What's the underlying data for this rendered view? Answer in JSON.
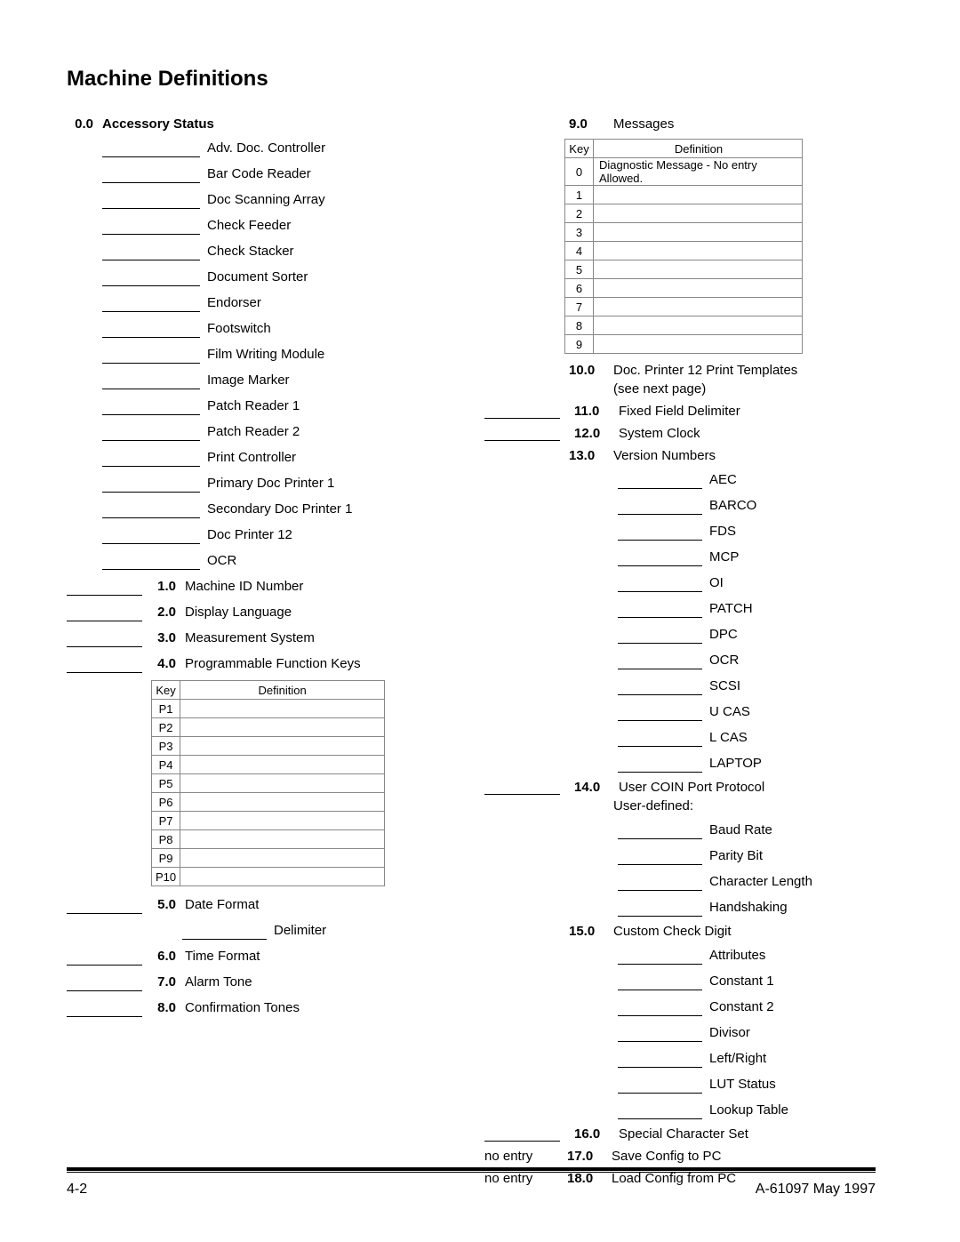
{
  "page_title": "Machine Definitions",
  "footer_left": "4-2",
  "footer_right": "A-61097    May 1997",
  "left": {
    "sec0": {
      "num": "0.0",
      "title": "Accessory Status"
    },
    "accessories": [
      "Adv. Doc. Controller",
      "Bar Code Reader",
      "Doc Scanning Array",
      "Check Feeder",
      "Check Stacker",
      "Document Sorter",
      "Endorser",
      "Footswitch",
      "Film Writing Module",
      "Image Marker",
      "Patch Reader 1",
      "Patch Reader 2",
      "Print Controller",
      "Primary Doc Printer 1",
      "Secondary Doc Printer 1",
      "Doc Printer 12",
      "OCR"
    ],
    "items": [
      {
        "num": "1.0",
        "label": "Machine ID Number"
      },
      {
        "num": "2.0",
        "label": "Display Language"
      },
      {
        "num": "3.0",
        "label": "Measurement System"
      },
      {
        "num": "4.0",
        "label": "Programmable Function Keys"
      }
    ],
    "pf_table": {
      "key_header": "Key",
      "def_header": "Definition",
      "rows": [
        "P1",
        "P2",
        "P3",
        "P4",
        "P5",
        "P6",
        "P7",
        "P8",
        "P9",
        "P10"
      ]
    },
    "after_table": [
      {
        "num": "5.0",
        "label": "Date Format"
      }
    ],
    "delimiter_label": "Delimiter",
    "after_delim": [
      {
        "num": "6.0",
        "label": "Time Format"
      },
      {
        "num": "7.0",
        "label": "Alarm Tone"
      },
      {
        "num": "8.0",
        "label": "Confirmation Tones"
      }
    ]
  },
  "right": {
    "sec9": {
      "num": "9.0",
      "title": "Messages"
    },
    "msg_table": {
      "key_header": "Key",
      "def_header": "Definition",
      "rows": [
        {
          "k": "0",
          "d": "Diagnostic Message - No entry Allowed."
        },
        {
          "k": "1",
          "d": ""
        },
        {
          "k": "2",
          "d": ""
        },
        {
          "k": "3",
          "d": ""
        },
        {
          "k": "4",
          "d": ""
        },
        {
          "k": "5",
          "d": ""
        },
        {
          "k": "6",
          "d": ""
        },
        {
          "k": "7",
          "d": ""
        },
        {
          "k": "8",
          "d": ""
        },
        {
          "k": "9",
          "d": ""
        }
      ]
    },
    "sec10": {
      "num": "10.0",
      "title": "Doc. Printer 12 Print Templates",
      "note": "(see next page)"
    },
    "sec11": {
      "num": "11.0",
      "title": "Fixed Field Delimiter"
    },
    "sec12": {
      "num": "12.0",
      "title": "System Clock"
    },
    "sec13": {
      "num": "13.0",
      "title": "Version Numbers"
    },
    "versions": [
      "AEC",
      "BARCO",
      "FDS",
      "MCP",
      "OI",
      "PATCH",
      "DPC",
      "OCR",
      "SCSI",
      "U CAS",
      "L CAS",
      "LAPTOP"
    ],
    "sec14": {
      "num": "14.0",
      "title": "User COIN Port Protocol",
      "sub": "User-defined:"
    },
    "coin": [
      "Baud Rate",
      "Parity Bit",
      "Character Length",
      "Handshaking"
    ],
    "sec15": {
      "num": "15.0",
      "title": "Custom Check Digit"
    },
    "check": [
      "Attributes",
      "Constant 1",
      "Constant 2",
      "Divisor",
      "Left/Right",
      "LUT Status",
      "Lookup Table"
    ],
    "sec16": {
      "num": "16.0",
      "title": "Special Character Set"
    },
    "sec17": {
      "num": "17.0",
      "title": "Save Config to PC",
      "prefix": "no entry"
    },
    "sec18": {
      "num": "18.0",
      "title": "Load Config from PC",
      "prefix": "no entry"
    }
  }
}
